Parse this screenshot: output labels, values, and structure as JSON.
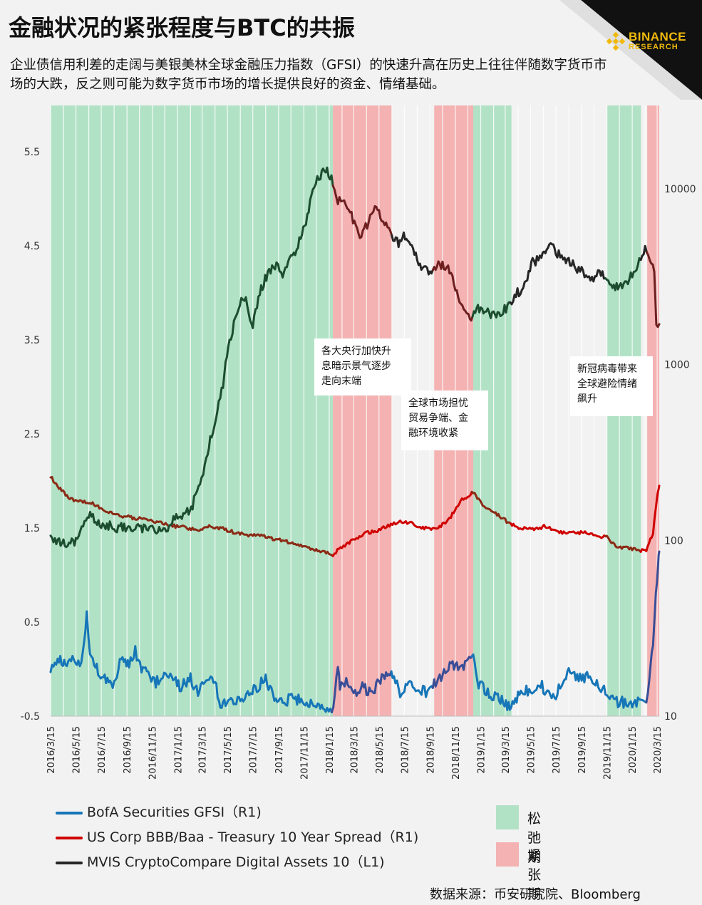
{
  "header": {
    "title": "金融状况的紧张程度与BTC的共振",
    "subtitle": "企业债信用利差的走阔与美银美林全球金融压力指数（GFSI）的快速升高在历史上往往伴随数字货币市场的大跌，反之则可能为数字货币市场的增长提供良好的资金、情绪基础。",
    "logo_line1": "BINANCE",
    "logo_line2": "RESEARCH"
  },
  "colors": {
    "green_period": "#b2e2c6",
    "red_period": "#f4b2b2",
    "blue_series": "#1676b8",
    "blue_dark": "#3a4e97",
    "red_series": "#d00000",
    "red_dark": "#8b2a15",
    "black_series": "#262626",
    "green_dark": "#1c4d2e",
    "logo_gold": "#f0b90b"
  },
  "legend": {
    "items": [
      {
        "name": "BofA Securities GFSI（R1)",
        "color": "#1676b8"
      },
      {
        "name": "US Corp BBB/Baa - Treasury 10 Year Spread（R1)",
        "color": "#d00000"
      },
      {
        "name": "MVIS CryptoCompare Digital Assets 10（L1)",
        "color": "#262626"
      }
    ],
    "periods": [
      {
        "label": "松弛期",
        "color": "#b2e2c6"
      },
      {
        "label": "紧张期",
        "color": "#f4b2b2"
      }
    ]
  },
  "annotations": [
    {
      "text_lines": [
        "各大央行加快升",
        "息暗示景气逐步",
        "走向末端"
      ]
    },
    {
      "text_lines": [
        "全球市场担忧",
        "贸易争端、金",
        "融环境收紧"
      ]
    },
    {
      "text_lines": [
        "新冠病毒带来",
        "全球避险情绪",
        "飙升"
      ]
    }
  ],
  "source": "数据来源：币安研究院、Bloomberg",
  "chart_data": {
    "type": "line",
    "x_start": "2016-03-15",
    "x_end": "2020-03-20",
    "x_ticks": [
      "2016/3/15",
      "2016/5/15",
      "2016/7/15",
      "2016/9/15",
      "2016/11/15",
      "2017/1/15",
      "2017/3/15",
      "2017/5/15",
      "2017/7/15",
      "2017/9/15",
      "2017/11/15",
      "2018/1/15",
      "2018/3/15",
      "2018/5/15",
      "2018/7/15",
      "2018/9/15",
      "2018/11/15",
      "2019/1/15",
      "2019/3/15",
      "2019/5/15",
      "2019/7/15",
      "2019/9/15",
      "2019/11/15",
      "2020/1/15",
      "2020/3/15"
    ],
    "y_left_ticks": [
      "5.5",
      "4.5",
      "3.5",
      "2.5",
      "1.5",
      "0.5",
      "-0.5"
    ],
    "y_left_range": [
      -0.5,
      5.5
    ],
    "y_right_ticks": [
      "10000",
      "1000",
      "100",
      "10"
    ],
    "y_right_range_log": [
      10,
      10000
    ],
    "grid": "vertical",
    "periods": [
      {
        "type": "loose",
        "start": "2016-03-15",
        "end": "2018-01-24"
      },
      {
        "type": "tight",
        "start": "2018-01-24",
        "end": "2018-06-15"
      },
      {
        "type": "tight",
        "start": "2018-09-25",
        "end": "2018-12-28"
      },
      {
        "type": "loose",
        "start": "2018-12-28",
        "end": "2019-03-30"
      },
      {
        "type": "loose",
        "start": "2019-11-15",
        "end": "2020-02-05"
      },
      {
        "type": "tight",
        "start": "2020-02-20",
        "end": "2020-03-20"
      }
    ],
    "series": [
      {
        "name": "BofA Securities GFSI（R1)",
        "axis": "left",
        "points": [
          [
            "2016-03-15",
            0.02
          ],
          [
            "2016-04-01",
            0.12
          ],
          [
            "2016-04-20",
            0.05
          ],
          [
            "2016-05-10",
            0.12
          ],
          [
            "2016-05-28",
            0.05
          ],
          [
            "2016-06-10",
            0.6
          ],
          [
            "2016-06-18",
            0.1
          ],
          [
            "2016-07-01",
            0.02
          ],
          [
            "2016-07-20",
            -0.1
          ],
          [
            "2016-08-15",
            -0.15
          ],
          [
            "2016-09-01",
            0.1
          ],
          [
            "2016-09-20",
            0.05
          ],
          [
            "2016-10-05",
            0.2
          ],
          [
            "2016-10-20",
            0.0
          ],
          [
            "2016-11-05",
            0.0
          ],
          [
            "2016-11-20",
            -0.15
          ],
          [
            "2016-12-10",
            -0.1
          ],
          [
            "2017-01-01",
            -0.05
          ],
          [
            "2017-01-20",
            -0.2
          ],
          [
            "2017-02-15",
            -0.1
          ],
          [
            "2017-03-05",
            -0.25
          ],
          [
            "2017-03-25",
            -0.1
          ],
          [
            "2017-04-15",
            -0.15
          ],
          [
            "2017-05-01",
            -0.4
          ],
          [
            "2017-05-20",
            -0.3
          ],
          [
            "2017-06-15",
            -0.35
          ],
          [
            "2017-07-10",
            -0.25
          ],
          [
            "2017-07-25",
            -0.2
          ],
          [
            "2017-08-15",
            -0.1
          ],
          [
            "2017-09-05",
            -0.3
          ],
          [
            "2017-09-25",
            -0.35
          ],
          [
            "2017-10-20",
            -0.3
          ],
          [
            "2017-11-15",
            -0.35
          ],
          [
            "2017-12-15",
            -0.4
          ],
          [
            "2018-01-10",
            -0.45
          ],
          [
            "2018-01-25",
            -0.4
          ],
          [
            "2018-02-05",
            0.0
          ],
          [
            "2018-02-10",
            -0.2
          ],
          [
            "2018-02-25",
            -0.1
          ],
          [
            "2018-03-15",
            -0.25
          ],
          [
            "2018-04-05",
            -0.2
          ],
          [
            "2018-04-25",
            -0.25
          ],
          [
            "2018-05-15",
            -0.15
          ],
          [
            "2018-06-01",
            -0.05
          ],
          [
            "2018-06-20",
            -0.1
          ],
          [
            "2018-07-05",
            -0.25
          ],
          [
            "2018-07-25",
            -0.15
          ],
          [
            "2018-08-15",
            -0.2
          ],
          [
            "2018-09-05",
            -0.25
          ],
          [
            "2018-09-25",
            -0.15
          ],
          [
            "2018-10-15",
            -0.05
          ],
          [
            "2018-11-05",
            0.05
          ],
          [
            "2018-11-25",
            0.0
          ],
          [
            "2018-12-15",
            0.1
          ],
          [
            "2018-12-28",
            0.12
          ],
          [
            "2019-01-10",
            -0.15
          ],
          [
            "2019-02-01",
            -0.25
          ],
          [
            "2019-02-25",
            -0.3
          ],
          [
            "2019-03-20",
            -0.4
          ],
          [
            "2019-04-05",
            -0.35
          ],
          [
            "2019-04-25",
            -0.2
          ],
          [
            "2019-05-15",
            -0.25
          ],
          [
            "2019-06-05",
            -0.15
          ],
          [
            "2019-06-25",
            -0.25
          ],
          [
            "2019-07-15",
            -0.3
          ],
          [
            "2019-08-05",
            -0.05
          ],
          [
            "2019-08-25",
            -0.05
          ],
          [
            "2019-09-15",
            -0.1
          ],
          [
            "2019-10-05",
            -0.05
          ],
          [
            "2019-10-25",
            -0.2
          ],
          [
            "2019-11-15",
            -0.25
          ],
          [
            "2019-12-05",
            -0.35
          ],
          [
            "2019-12-25",
            -0.35
          ],
          [
            "2020-01-15",
            -0.4
          ],
          [
            "2020-02-01",
            -0.35
          ],
          [
            "2020-02-18",
            -0.4
          ],
          [
            "2020-02-25",
            -0.1
          ],
          [
            "2020-03-05",
            0.3
          ],
          [
            "2020-03-12",
            0.8
          ],
          [
            "2020-03-17",
            1.1
          ],
          [
            "2020-03-20",
            1.25
          ]
        ]
      },
      {
        "name": "US Corp BBB/Baa - Treasury 10 Year Spread（R1)",
        "axis": "left",
        "points": [
          [
            "2016-03-15",
            2.05
          ],
          [
            "2016-04-01",
            1.95
          ],
          [
            "2016-04-20",
            1.85
          ],
          [
            "2016-05-10",
            1.8
          ],
          [
            "2016-06-01",
            1.78
          ],
          [
            "2016-07-01",
            1.75
          ],
          [
            "2016-07-20",
            1.7
          ],
          [
            "2016-08-15",
            1.65
          ],
          [
            "2016-09-15",
            1.62
          ],
          [
            "2016-10-15",
            1.6
          ],
          [
            "2016-11-15",
            1.58
          ],
          [
            "2016-12-10",
            1.55
          ],
          [
            "2017-01-10",
            1.52
          ],
          [
            "2017-02-10",
            1.5
          ],
          [
            "2017-03-05",
            1.48
          ],
          [
            "2017-04-01",
            1.52
          ],
          [
            "2017-05-01",
            1.5
          ],
          [
            "2017-06-01",
            1.45
          ],
          [
            "2017-07-01",
            1.42
          ],
          [
            "2017-08-01",
            1.42
          ],
          [
            "2017-09-05",
            1.38
          ],
          [
            "2017-10-01",
            1.36
          ],
          [
            "2017-11-01",
            1.32
          ],
          [
            "2017-12-01",
            1.28
          ],
          [
            "2018-01-01",
            1.25
          ],
          [
            "2018-01-24",
            1.22
          ],
          [
            "2018-02-15",
            1.3
          ],
          [
            "2018-03-15",
            1.38
          ],
          [
            "2018-04-15",
            1.45
          ],
          [
            "2018-05-15",
            1.48
          ],
          [
            "2018-06-20",
            1.55
          ],
          [
            "2018-07-05",
            1.58
          ],
          [
            "2018-08-01",
            1.55
          ],
          [
            "2018-09-01",
            1.5
          ],
          [
            "2018-10-01",
            1.48
          ],
          [
            "2018-11-01",
            1.6
          ],
          [
            "2018-12-01",
            1.8
          ],
          [
            "2018-12-28",
            1.88
          ],
          [
            "2019-01-20",
            1.75
          ],
          [
            "2019-02-20",
            1.65
          ],
          [
            "2019-03-25",
            1.55
          ],
          [
            "2019-04-20",
            1.5
          ],
          [
            "2019-05-20",
            1.48
          ],
          [
            "2019-06-20",
            1.52
          ],
          [
            "2019-07-20",
            1.45
          ],
          [
            "2019-08-20",
            1.45
          ],
          [
            "2019-09-20",
            1.45
          ],
          [
            "2019-10-20",
            1.42
          ],
          [
            "2019-11-15",
            1.4
          ],
          [
            "2019-12-10",
            1.3
          ],
          [
            "2020-01-15",
            1.28
          ],
          [
            "2020-02-18",
            1.25
          ],
          [
            "2020-03-05",
            1.45
          ],
          [
            "2020-03-12",
            1.7
          ],
          [
            "2020-03-17",
            1.9
          ],
          [
            "2020-03-20",
            1.95
          ]
        ]
      },
      {
        "name": "MVIS CryptoCompare Digital Assets 10（L1)",
        "axis": "right",
        "points": [
          [
            "2016-03-15",
            100
          ],
          [
            "2016-04-15",
            95
          ],
          [
            "2016-05-15",
            100
          ],
          [
            "2016-06-15",
            140
          ],
          [
            "2016-07-15",
            125
          ],
          [
            "2016-08-15",
            118
          ],
          [
            "2016-09-15",
            120
          ],
          [
            "2016-10-15",
            118
          ],
          [
            "2016-11-15",
            115
          ],
          [
            "2016-12-15",
            112
          ],
          [
            "2017-01-05",
            130
          ],
          [
            "2017-02-01",
            140
          ],
          [
            "2017-02-20",
            160
          ],
          [
            "2017-03-10",
            210
          ],
          [
            "2017-03-25",
            300
          ],
          [
            "2017-04-10",
            420
          ],
          [
            "2017-05-01",
            700
          ],
          [
            "2017-05-20",
            1350
          ],
          [
            "2017-06-10",
            2100
          ],
          [
            "2017-06-25",
            2400
          ],
          [
            "2017-07-15",
            1700
          ],
          [
            "2017-08-01",
            2600
          ],
          [
            "2017-08-20",
            3300
          ],
          [
            "2017-09-10",
            3800
          ],
          [
            "2017-09-25",
            3100
          ],
          [
            "2017-10-15",
            4000
          ],
          [
            "2017-11-01",
            4800
          ],
          [
            "2017-11-20",
            6500
          ],
          [
            "2017-12-10",
            10500
          ],
          [
            "2017-12-25",
            12000
          ],
          [
            "2018-01-10",
            13000
          ],
          [
            "2018-01-24",
            11000
          ],
          [
            "2018-02-05",
            8500
          ],
          [
            "2018-02-20",
            9000
          ],
          [
            "2018-03-10",
            7000
          ],
          [
            "2018-03-30",
            5500
          ],
          [
            "2018-04-20",
            6500
          ],
          [
            "2018-05-05",
            8000
          ],
          [
            "2018-05-25",
            6500
          ],
          [
            "2018-06-15",
            5300
          ],
          [
            "2018-07-01",
            4900
          ],
          [
            "2018-07-20",
            5500
          ],
          [
            "2018-08-05",
            4500
          ],
          [
            "2018-08-25",
            3600
          ],
          [
            "2018-09-15",
            3400
          ],
          [
            "2018-10-05",
            3700
          ],
          [
            "2018-10-25",
            3600
          ],
          [
            "2018-11-15",
            2800
          ],
          [
            "2018-12-05",
            2000
          ],
          [
            "2018-12-20",
            1850
          ],
          [
            "2019-01-05",
            2100
          ],
          [
            "2019-01-25",
            2000
          ],
          [
            "2019-02-15",
            1900
          ],
          [
            "2019-03-10",
            2000
          ],
          [
            "2019-04-10",
            2500
          ],
          [
            "2019-05-01",
            2800
          ],
          [
            "2019-05-20",
            3800
          ],
          [
            "2019-06-10",
            4100
          ],
          [
            "2019-06-26",
            4900
          ],
          [
            "2019-07-15",
            4400
          ],
          [
            "2019-08-05",
            4000
          ],
          [
            "2019-08-25",
            3700
          ],
          [
            "2019-09-15",
            3400
          ],
          [
            "2019-10-10",
            3100
          ],
          [
            "2019-10-28",
            3500
          ],
          [
            "2019-11-15",
            3000
          ],
          [
            "2019-12-05",
            2800
          ],
          [
            "2019-12-25",
            2700
          ],
          [
            "2020-01-15",
            3300
          ],
          [
            "2020-02-01",
            3800
          ],
          [
            "2020-02-15",
            4500
          ],
          [
            "2020-03-01",
            3800
          ],
          [
            "2020-03-08",
            3600
          ],
          [
            "2020-03-13",
            1700
          ],
          [
            "2020-03-20",
            1700
          ]
        ]
      }
    ]
  }
}
